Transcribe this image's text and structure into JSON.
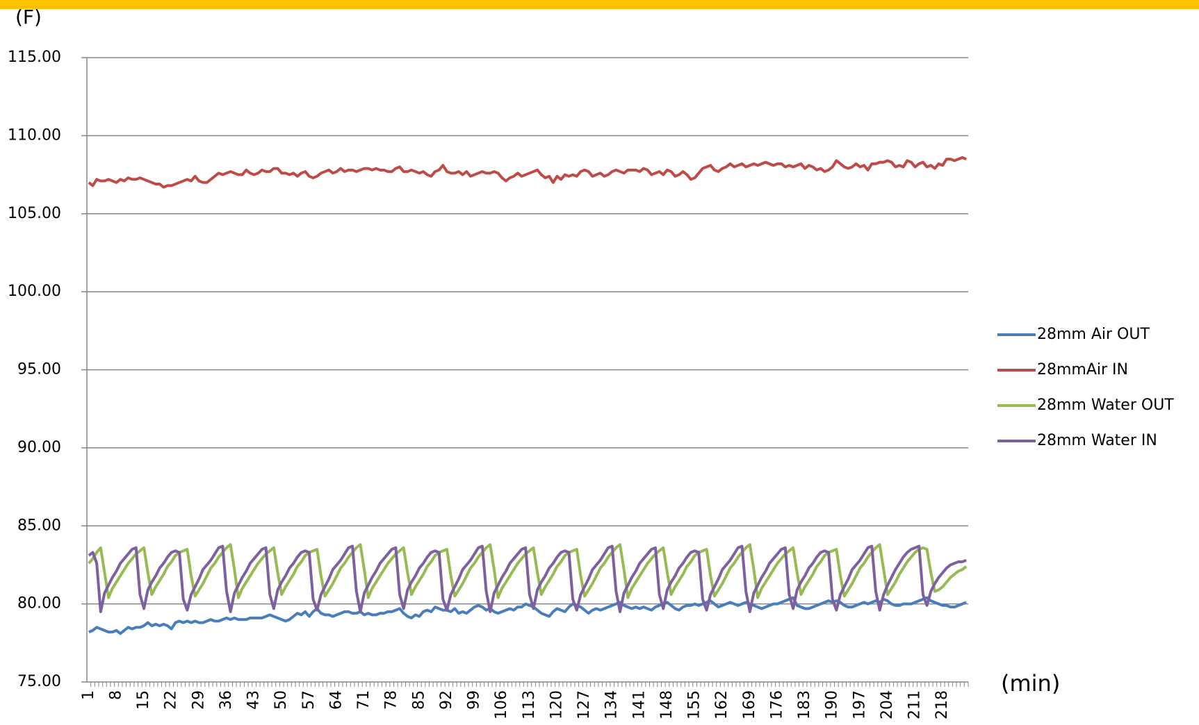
{
  "chart_data": {
    "type": "line",
    "y_label": "(F)",
    "x_label": "(min)",
    "ylim": [
      75,
      115
    ],
    "yticks": [
      {
        "value": 75,
        "label": "75.00"
      },
      {
        "value": 80,
        "label": "80.00"
      },
      {
        "value": 85,
        "label": "85.00"
      },
      {
        "value": 90,
        "label": "90.00"
      },
      {
        "value": 95,
        "label": "95.00"
      },
      {
        "value": 100,
        "label": "100.00"
      },
      {
        "value": 105,
        "label": "105.00"
      },
      {
        "value": 110,
        "label": "110.00"
      },
      {
        "value": 115,
        "label": "115.00"
      }
    ],
    "grid": true,
    "legend": "right",
    "categories": [
      1,
      null,
      null,
      null,
      null,
      null,
      null,
      8,
      null,
      null,
      null,
      null,
      null,
      null,
      15,
      null,
      null,
      null,
      null,
      null,
      null,
      22,
      null,
      null,
      null,
      null,
      null,
      null,
      29,
      null,
      null,
      null,
      null,
      null,
      null,
      36,
      null,
      null,
      null,
      null,
      null,
      null,
      43,
      null,
      null,
      null,
      null,
      null,
      null,
      50,
      null,
      null,
      null,
      null,
      null,
      null,
      57,
      null,
      null,
      null,
      null,
      null,
      null,
      64,
      null,
      null,
      null,
      null,
      null,
      null,
      71,
      null,
      null,
      null,
      null,
      null,
      null,
      78,
      null,
      null,
      null,
      null,
      null,
      null,
      85,
      null,
      null,
      null,
      null,
      null,
      null,
      92,
      null,
      null,
      null,
      null,
      null,
      null,
      99,
      null,
      null,
      null,
      null,
      null,
      null,
      106,
      null,
      null,
      null,
      null,
      null,
      null,
      113,
      null,
      null,
      null,
      null,
      null,
      null,
      120,
      null,
      null,
      null,
      null,
      null,
      null,
      127,
      null,
      null,
      null,
      null,
      null,
      null,
      134,
      null,
      null,
      null,
      null,
      null,
      null,
      141,
      null,
      null,
      null,
      null,
      null,
      null,
      148,
      null,
      null,
      null,
      null,
      null,
      null,
      155,
      null,
      null,
      null,
      null,
      null,
      null,
      162,
      null,
      null,
      null,
      null,
      null,
      null,
      169,
      null,
      null,
      null,
      null,
      null,
      null,
      176,
      null,
      null,
      null,
      null,
      null,
      null,
      183,
      null,
      null,
      null,
      null,
      null,
      null,
      190,
      null,
      null,
      null,
      null,
      null,
      null,
      197,
      null,
      null,
      null,
      null,
      null,
      null,
      204,
      null,
      null,
      null,
      null,
      null,
      null,
      211,
      null,
      null,
      null,
      null,
      null,
      null,
      218,
      null,
      null,
      null,
      null,
      null,
      null
    ],
    "series": [
      {
        "name": "28mm Air OUT",
        "color": "#4a7ebb",
        "values": [
          78.2,
          78.3,
          78.5,
          78.4,
          78.3,
          78.2,
          78.2,
          78.3,
          78.1,
          78.3,
          78.5,
          78.4,
          78.5,
          78.5,
          78.6,
          78.8,
          78.6,
          78.7,
          78.6,
          78.7,
          78.6,
          78.4,
          78.8,
          78.9,
          78.8,
          78.9,
          78.8,
          78.9,
          78.8,
          78.8,
          78.9,
          79.0,
          78.9,
          78.9,
          79.0,
          79.1,
          79.0,
          79.1,
          79.0,
          79.0,
          79.0,
          79.1,
          79.1,
          79.1,
          79.1,
          79.2,
          79.3,
          79.2,
          79.1,
          79.0,
          78.9,
          79.0,
          79.2,
          79.4,
          79.3,
          79.5,
          79.2,
          79.5,
          79.7,
          79.4,
          79.3,
          79.3,
          79.2,
          79.3,
          79.4,
          79.5,
          79.5,
          79.4,
          79.4,
          79.5,
          79.3,
          79.4,
          79.3,
          79.3,
          79.4,
          79.4,
          79.5,
          79.5,
          79.6,
          79.7,
          79.4,
          79.2,
          79.1,
          79.3,
          79.2,
          79.5,
          79.6,
          79.5,
          79.8,
          79.7,
          79.6,
          79.6,
          79.5,
          79.7,
          79.4,
          79.5,
          79.4,
          79.6,
          79.8,
          79.9,
          79.8,
          79.6,
          79.7,
          79.5,
          79.4,
          79.5,
          79.6,
          79.7,
          79.6,
          79.8,
          79.8,
          80.0,
          79.9,
          79.8,
          79.6,
          79.4,
          79.3,
          79.2,
          79.5,
          79.7,
          79.6,
          79.5,
          79.8,
          80.0,
          79.9,
          79.8,
          79.6,
          79.4,
          79.6,
          79.7,
          79.6,
          79.7,
          79.8,
          79.9,
          80.0,
          80.1,
          79.9,
          79.8,
          79.7,
          79.8,
          79.7,
          79.8,
          79.7,
          79.6,
          79.8,
          79.9,
          80.0,
          80.1,
          79.9,
          79.7,
          79.6,
          79.8,
          79.9,
          79.9,
          80.0,
          79.9,
          80.0,
          80.1,
          80.2,
          80.0,
          79.8,
          79.9,
          80.0,
          80.1,
          80.0,
          79.9,
          80.0,
          80.1,
          80.0,
          79.9,
          79.8,
          79.7,
          79.8,
          79.9,
          80.0,
          80.0,
          80.1,
          80.2,
          80.3,
          80.4,
          79.9,
          79.8,
          79.7,
          79.7,
          79.8,
          79.9,
          80.0,
          80.1,
          80.2,
          80.1,
          80.2,
          80.1,
          79.9,
          79.8,
          79.8,
          79.9,
          80.0,
          80.1,
          80.0,
          80.1,
          80.2,
          80.1,
          80.3,
          80.2,
          80.0,
          79.9,
          79.9,
          80.0,
          80.0,
          80.0,
          80.1,
          80.2,
          80.3,
          80.4,
          80.2,
          80.1,
          80.0,
          79.9,
          79.9,
          79.8,
          79.8,
          79.9,
          80.0,
          80.1
        ]
      },
      {
        "name": "28mmAir IN",
        "color": "#be4b48",
        "values": [
          107.0,
          106.8,
          107.2,
          107.1,
          107.1,
          107.2,
          107.1,
          107.0,
          107.2,
          107.1,
          107.3,
          107.2,
          107.2,
          107.3,
          107.2,
          107.1,
          107.0,
          106.9,
          106.9,
          106.7,
          106.8,
          106.8,
          106.9,
          107.0,
          107.1,
          107.2,
          107.1,
          107.4,
          107.1,
          107.0,
          107.0,
          107.2,
          107.4,
          107.6,
          107.5,
          107.6,
          107.7,
          107.6,
          107.5,
          107.5,
          107.8,
          107.6,
          107.5,
          107.6,
          107.8,
          107.7,
          107.7,
          107.9,
          107.9,
          107.6,
          107.6,
          107.5,
          107.6,
          107.4,
          107.6,
          107.7,
          107.4,
          107.3,
          107.4,
          107.6,
          107.7,
          107.8,
          107.6,
          107.7,
          107.9,
          107.7,
          107.8,
          107.8,
          107.7,
          107.8,
          107.9,
          107.9,
          107.8,
          107.9,
          107.8,
          107.8,
          107.7,
          107.7,
          107.9,
          108.0,
          107.7,
          107.7,
          107.8,
          107.7,
          107.6,
          107.7,
          107.5,
          107.4,
          107.7,
          107.8,
          108.1,
          107.7,
          107.6,
          107.6,
          107.7,
          107.5,
          107.7,
          107.4,
          107.5,
          107.6,
          107.7,
          107.6,
          107.6,
          107.7,
          107.6,
          107.3,
          107.1,
          107.3,
          107.4,
          107.6,
          107.4,
          107.5,
          107.6,
          107.7,
          107.8,
          107.5,
          107.3,
          107.4,
          107.0,
          107.4,
          107.2,
          107.5,
          107.4,
          107.5,
          107.4,
          107.7,
          107.8,
          107.7,
          107.4,
          107.5,
          107.6,
          107.4,
          107.5,
          107.7,
          107.8,
          107.7,
          107.6,
          107.8,
          107.8,
          107.8,
          107.7,
          107.9,
          107.8,
          107.5,
          107.6,
          107.7,
          107.5,
          107.8,
          107.7,
          107.4,
          107.5,
          107.7,
          107.5,
          107.2,
          107.3,
          107.6,
          107.9,
          108.0,
          108.1,
          107.8,
          107.7,
          107.9,
          108.0,
          108.2,
          108.0,
          108.1,
          108.2,
          108.0,
          108.1,
          108.2,
          108.1,
          108.2,
          108.3,
          108.2,
          108.1,
          108.2,
          108.2,
          108.0,
          108.1,
          108.0,
          108.1,
          108.2,
          107.9,
          108.1,
          108.0,
          107.8,
          107.9,
          107.7,
          107.8,
          108.0,
          108.4,
          108.2,
          108.0,
          107.9,
          108.0,
          108.2,
          108.0,
          108.1,
          107.8,
          108.2,
          108.2,
          108.3,
          108.3,
          108.4,
          108.3,
          108.0,
          108.1,
          108.0,
          108.4,
          108.3,
          108.0,
          108.2,
          108.3,
          108.0,
          108.1,
          107.9,
          108.2,
          108.1,
          108.5,
          108.5,
          108.4,
          108.5,
          108.6,
          108.5
        ]
      },
      {
        "name": "28mm Water OUT",
        "color": "#98b954",
        "values": [
          82.6,
          82.9,
          83.3,
          83.6,
          82.0,
          80.4,
          81.0,
          81.4,
          81.8,
          82.2,
          82.6,
          82.9,
          83.2,
          83.4,
          83.6,
          82.0,
          80.6,
          81.1,
          81.5,
          81.9,
          82.4,
          82.7,
          83.1,
          83.3,
          83.4,
          83.5,
          81.8,
          80.5,
          80.9,
          81.3,
          81.8,
          82.3,
          82.6,
          83.0,
          83.3,
          83.6,
          83.8,
          82.2,
          80.4,
          81.0,
          81.4,
          81.8,
          82.2,
          82.6,
          82.9,
          83.2,
          83.4,
          83.6,
          82.0,
          80.6,
          81.1,
          81.5,
          81.9,
          82.4,
          82.7,
          83.1,
          83.3,
          83.4,
          83.5,
          81.8,
          80.5,
          80.9,
          81.3,
          81.8,
          82.3,
          82.6,
          83.0,
          83.3,
          83.6,
          83.8,
          82.2,
          80.4,
          81.0,
          81.4,
          81.8,
          82.2,
          82.6,
          82.9,
          83.2,
          83.4,
          83.6,
          82.0,
          80.6,
          81.1,
          81.5,
          81.9,
          82.4,
          82.7,
          83.1,
          83.3,
          83.4,
          83.5,
          81.8,
          80.5,
          80.9,
          81.3,
          81.8,
          82.3,
          82.6,
          83.0,
          83.3,
          83.6,
          83.8,
          82.2,
          80.4,
          81.0,
          81.4,
          81.8,
          82.2,
          82.6,
          82.9,
          83.2,
          83.4,
          83.6,
          82.0,
          80.6,
          81.1,
          81.5,
          81.9,
          82.4,
          82.7,
          83.1,
          83.3,
          83.4,
          83.5,
          81.8,
          80.5,
          80.9,
          81.3,
          81.8,
          82.3,
          82.6,
          83.0,
          83.3,
          83.6,
          83.8,
          82.2,
          80.4,
          81.0,
          81.4,
          81.8,
          82.2,
          82.6,
          82.9,
          83.2,
          83.4,
          83.6,
          82.0,
          80.6,
          81.1,
          81.5,
          81.9,
          82.4,
          82.7,
          83.1,
          83.3,
          83.4,
          83.5,
          81.8,
          80.5,
          80.9,
          81.3,
          81.8,
          82.3,
          82.6,
          83.0,
          83.3,
          83.6,
          83.8,
          82.2,
          80.4,
          81.0,
          81.4,
          81.8,
          82.2,
          82.6,
          82.9,
          83.2,
          83.4,
          83.6,
          82.0,
          80.6,
          81.1,
          81.5,
          81.9,
          82.4,
          82.7,
          83.1,
          83.3,
          83.4,
          83.5,
          81.8,
          80.5,
          80.9,
          81.3,
          81.8,
          82.3,
          82.6,
          83.0,
          83.3,
          83.6,
          83.8,
          82.2,
          80.6,
          81.0,
          81.4,
          81.9,
          82.3,
          82.7,
          83.0,
          83.3,
          83.5,
          83.6,
          83.5,
          82.0,
          80.8,
          80.9,
          81.1,
          81.4,
          81.7,
          81.9,
          82.1,
          82.2,
          82.4
        ]
      },
      {
        "name": "28mm Water IN",
        "color": "#7d60a0",
        "values": [
          83.1,
          83.3,
          82.6,
          79.5,
          80.7,
          81.2,
          81.7,
          82.1,
          82.6,
          82.9,
          83.2,
          83.5,
          83.6,
          80.6,
          79.7,
          80.9,
          81.4,
          81.8,
          82.3,
          82.6,
          83.0,
          83.3,
          83.4,
          83.3,
          80.3,
          79.6,
          80.6,
          81.1,
          81.6,
          82.2,
          82.5,
          82.8,
          83.2,
          83.6,
          83.7,
          80.8,
          79.5,
          80.7,
          81.2,
          81.7,
          82.1,
          82.6,
          82.9,
          83.2,
          83.5,
          83.6,
          80.6,
          79.7,
          80.9,
          81.4,
          81.8,
          82.3,
          82.6,
          83.0,
          83.3,
          83.4,
          83.3,
          80.3,
          79.6,
          80.6,
          81.1,
          81.6,
          82.2,
          82.5,
          82.8,
          83.2,
          83.6,
          83.7,
          80.8,
          79.5,
          80.7,
          81.2,
          81.7,
          82.1,
          82.6,
          82.9,
          83.2,
          83.5,
          83.6,
          80.6,
          79.7,
          80.9,
          81.4,
          81.8,
          82.3,
          82.6,
          83.0,
          83.3,
          83.4,
          83.3,
          80.3,
          79.6,
          80.6,
          81.1,
          81.6,
          82.2,
          82.5,
          82.8,
          83.2,
          83.6,
          83.7,
          80.8,
          79.5,
          80.7,
          81.2,
          81.7,
          82.1,
          82.6,
          82.9,
          83.2,
          83.5,
          83.6,
          80.6,
          79.7,
          80.9,
          81.4,
          81.8,
          82.3,
          82.6,
          83.0,
          83.3,
          83.4,
          83.3,
          80.3,
          79.6,
          80.6,
          81.1,
          81.6,
          82.2,
          82.5,
          82.8,
          83.2,
          83.6,
          83.7,
          80.8,
          79.5,
          80.7,
          81.2,
          81.7,
          82.1,
          82.6,
          82.9,
          83.2,
          83.5,
          83.6,
          80.6,
          79.7,
          80.9,
          81.4,
          81.8,
          82.3,
          82.6,
          83.0,
          83.3,
          83.4,
          83.3,
          80.3,
          79.6,
          80.6,
          81.1,
          81.6,
          82.2,
          82.5,
          82.8,
          83.2,
          83.6,
          83.7,
          80.8,
          79.5,
          80.7,
          81.2,
          81.7,
          82.1,
          82.6,
          82.9,
          83.2,
          83.5,
          83.6,
          80.6,
          79.7,
          80.9,
          81.4,
          81.8,
          82.3,
          82.6,
          83.0,
          83.3,
          83.4,
          83.3,
          80.3,
          79.6,
          80.6,
          81.1,
          81.6,
          82.2,
          82.5,
          82.8,
          83.2,
          83.6,
          83.7,
          80.8,
          79.6,
          80.6,
          81.2,
          81.7,
          82.2,
          82.6,
          83.0,
          83.3,
          83.5,
          83.6,
          83.7,
          80.6,
          79.9,
          80.8,
          81.3,
          81.7,
          82.0,
          82.3,
          82.5,
          82.6,
          82.7,
          82.7,
          82.8
        ]
      }
    ]
  }
}
